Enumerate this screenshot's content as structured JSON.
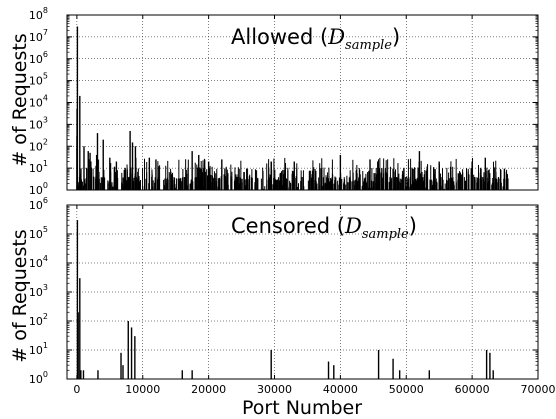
{
  "figure": {
    "shared_xlabel": "Port Number",
    "ylabel": "# of Requests"
  },
  "chart_data": [
    {
      "type": "bar",
      "label": {
        "prefix": "Allowed (",
        "math_symbol": "D",
        "math_subscript": "sample",
        "suffix": ")"
      },
      "ylabel": "# of Requests",
      "xlabel": "",
      "xscale": "linear",
      "yscale": "log",
      "xlim": [
        -1500,
        70000
      ],
      "ylim": [
        1,
        100000000
      ],
      "xticks": [
        0,
        10000,
        20000,
        30000,
        40000,
        50000,
        60000,
        70000
      ],
      "xtick_labels": [],
      "yticks": [
        1,
        10,
        100,
        1000,
        10000,
        100000,
        1000000,
        10000000,
        100000000
      ],
      "ytick_labels": [
        {
          "base": "10",
          "exp": "0"
        },
        {
          "base": "10",
          "exp": "1"
        },
        {
          "base": "10",
          "exp": "2"
        },
        {
          "base": "10",
          "exp": "3"
        },
        {
          "base": "10",
          "exp": "4"
        },
        {
          "base": "10",
          "exp": "5"
        },
        {
          "base": "10",
          "exp": "6"
        },
        {
          "base": "10",
          "exp": "7"
        },
        {
          "base": "10",
          "exp": "8"
        }
      ],
      "grid": true,
      "data_note": "prominent spikes estimated from image; remaining ports show low counts (1-30) spread across 1-65535",
      "x": [
        80,
        443,
        22,
        8080,
        21,
        3128,
        1080,
        25,
        4000,
        1723,
        8443,
        8888,
        2000,
        3000,
        5000,
        6000,
        11000,
        12000,
        17500,
        18500,
        20000,
        22000,
        29500,
        33000,
        40000,
        44500,
        52000,
        55000,
        60000,
        62000
      ],
      "values": [
        30000000,
        20000,
        5000,
        500,
        300,
        400,
        100,
        80,
        200,
        60,
        150,
        100,
        50,
        40,
        30,
        20,
        30,
        25,
        60,
        40,
        20,
        25,
        20,
        20,
        40,
        25,
        60,
        20,
        20,
        30
      ]
    },
    {
      "type": "bar",
      "label": {
        "prefix": "Censored (",
        "math_symbol": "D",
        "math_subscript": "sample",
        "suffix": ")"
      },
      "ylabel": "# of Requests",
      "xlabel": "Port Number",
      "xscale": "linear",
      "yscale": "log",
      "xlim": [
        -1500,
        70000
      ],
      "ylim": [
        1,
        1000000
      ],
      "xticks": [
        0,
        10000,
        20000,
        30000,
        40000,
        50000,
        60000,
        70000
      ],
      "xtick_labels": [
        "0",
        "10000",
        "20000",
        "30000",
        "40000",
        "50000",
        "60000",
        "70000"
      ],
      "yticks": [
        1,
        10,
        100,
        1000,
        10000,
        100000,
        1000000
      ],
      "ytick_labels": [
        {
          "base": "10",
          "exp": "0"
        },
        {
          "base": "10",
          "exp": "1"
        },
        {
          "base": "10",
          "exp": "2"
        },
        {
          "base": "10",
          "exp": "3"
        },
        {
          "base": "10",
          "exp": "4"
        },
        {
          "base": "10",
          "exp": "5"
        },
        {
          "base": "10",
          "exp": "6"
        }
      ],
      "grid": true,
      "x": [
        80,
        443,
        200,
        600,
        1000,
        3200,
        6700,
        7000,
        7800,
        8300,
        8800,
        16000,
        17500,
        29500,
        38200,
        39000,
        45800,
        48000,
        49000,
        53500,
        62200,
        62700,
        63200
      ],
      "values": [
        300000,
        3000,
        200,
        2,
        2,
        2,
        8,
        3,
        100,
        60,
        30,
        2,
        2,
        10,
        4,
        3,
        10,
        5,
        2,
        2,
        10,
        8,
        2
      ]
    }
  ]
}
